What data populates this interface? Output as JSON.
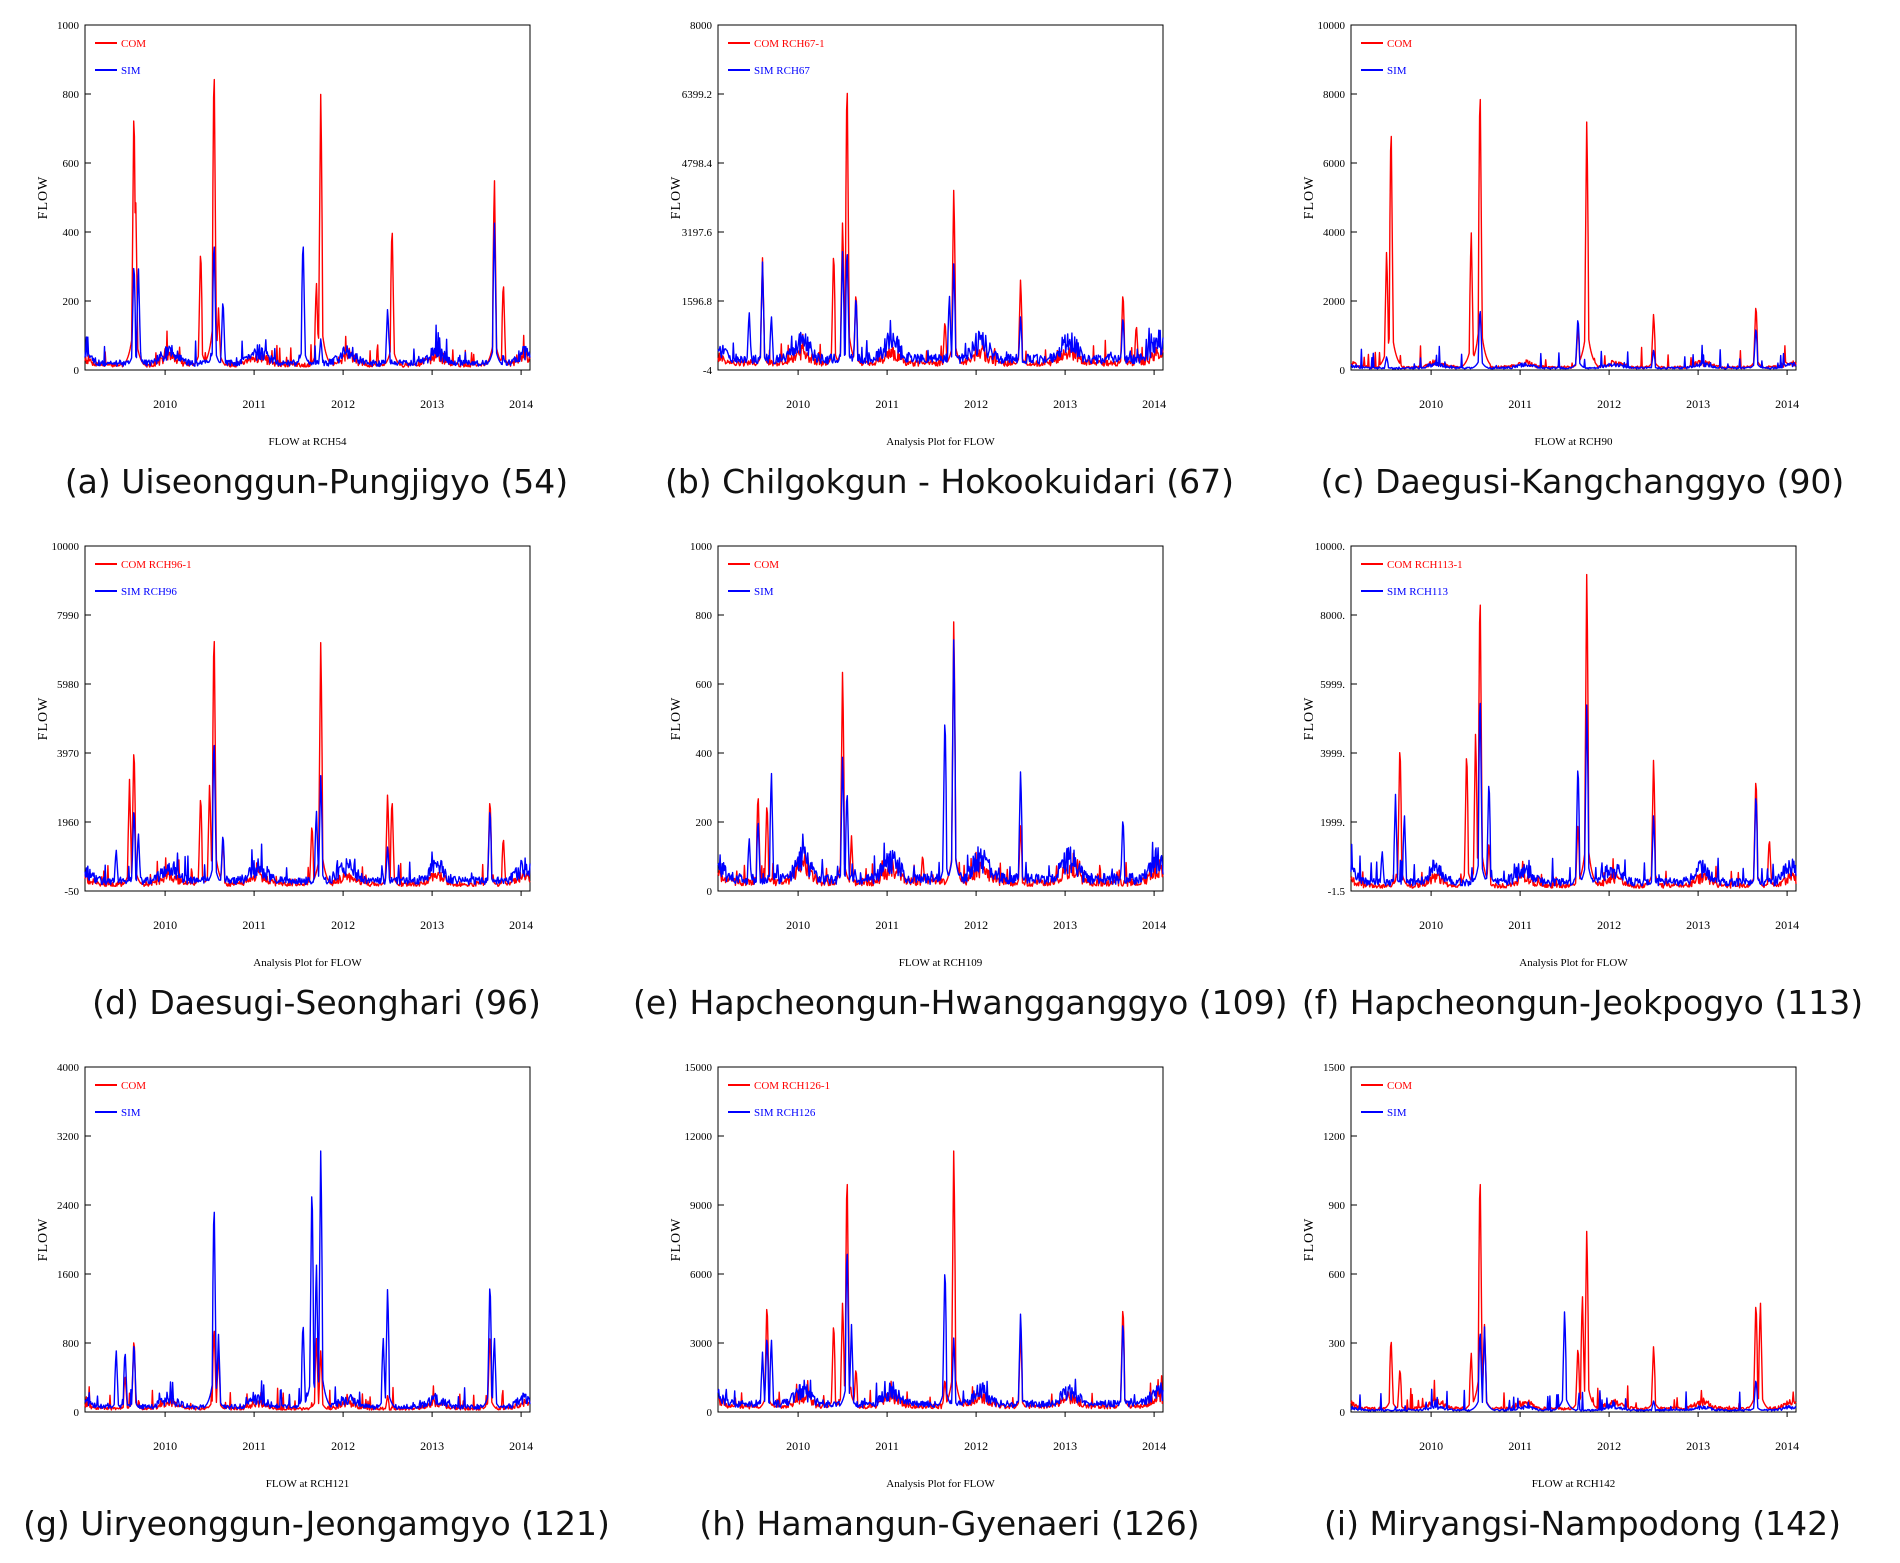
{
  "colors": {
    "com": "#ff0000",
    "sim": "#0000ff",
    "axis": "#000000"
  },
  "chart_data": [
    {
      "type": "line",
      "caption": "(a) Uiseonggun-Pungjigyo (54)",
      "xlabel": "FLOW at RCH54",
      "ylabel": "FLOW",
      "ylim": [
        0,
        1000
      ],
      "yticks": [
        "0",
        "200",
        "400",
        "600",
        "800",
        "1000"
      ],
      "xticks": [
        "2010",
        "2011",
        "2012",
        "2013",
        "2014"
      ],
      "legend_placement": "top-left",
      "series": [
        {
          "name": "COM",
          "color": "#ff0000",
          "baseline": 15,
          "peaks": [
            [
              2010.15,
              810
            ],
            [
              2010.17,
              490
            ],
            [
              2010.9,
              370
            ],
            [
              2011.05,
              945
            ],
            [
              2011.1,
              180
            ],
            [
              2012.25,
              845
            ],
            [
              2012.2,
              265
            ],
            [
              2013.05,
              445
            ],
            [
              2014.2,
              580
            ],
            [
              2014.3,
              270
            ]
          ]
        },
        {
          "name": "SIM",
          "color": "#0000ff",
          "baseline": 20,
          "peaks": [
            [
              2010.15,
              330
            ],
            [
              2010.2,
              310
            ],
            [
              2011.05,
              400
            ],
            [
              2011.15,
              215
            ],
            [
              2012.05,
              400
            ],
            [
              2012.25,
              95
            ],
            [
              2013.0,
              185
            ],
            [
              2014.2,
              450
            ]
          ]
        }
      ]
    },
    {
      "type": "line",
      "caption": "(b) Chilgokgun - Hokookuidari (67)",
      "xlabel": "Analysis Plot for FLOW",
      "ylabel": "FLOW",
      "ylim": [
        -4,
        8000
      ],
      "yticks": [
        "-4",
        "1596.8",
        "3197.6",
        "4798.4",
        "6399.2",
        "8000"
      ],
      "xticks": [
        "2010",
        "2011",
        "2012",
        "2013",
        "2014"
      ],
      "legend_placement": "top-left",
      "series": [
        {
          "name": "COM RCH67-1",
          "color": "#ff0000",
          "baseline": 150,
          "peaks": [
            [
              2010.1,
              2600
            ],
            [
              2010.9,
              2900
            ],
            [
              2011.0,
              3600
            ],
            [
              2011.05,
              7200
            ],
            [
              2011.15,
              1900
            ],
            [
              2012.25,
              4400
            ],
            [
              2012.15,
              1200
            ],
            [
              2013.0,
              2200
            ],
            [
              2014.15,
              1900
            ],
            [
              2014.3,
              1100
            ]
          ]
        },
        {
          "name": "SIM RCH67",
          "color": "#0000ff",
          "baseline": 250,
          "peaks": [
            [
              2009.95,
              1400
            ],
            [
              2010.1,
              2500
            ],
            [
              2010.2,
              1300
            ],
            [
              2011.0,
              2900
            ],
            [
              2011.05,
              3000
            ],
            [
              2011.15,
              1800
            ],
            [
              2012.2,
              1800
            ],
            [
              2012.25,
              2600
            ],
            [
              2013.0,
              1300
            ],
            [
              2014.15,
              1300
            ]
          ]
        }
      ]
    },
    {
      "type": "line",
      "caption": "(c) Daegusi-Kangchanggyo (90)",
      "xlabel": "FLOW at RCH90",
      "ylabel": "FLOW",
      "ylim": [
        0,
        10000
      ],
      "yticks": [
        "0",
        "2000",
        "4000",
        "6000",
        "8000",
        "10000"
      ],
      "xticks": [
        "2010",
        "2011",
        "2012",
        "2013",
        "2014"
      ],
      "legend_placement": "top-left",
      "series": [
        {
          "name": "COM",
          "color": "#ff0000",
          "baseline": 80,
          "peaks": [
            [
              2010.0,
              3600
            ],
            [
              2010.05,
              7600
            ],
            [
              2010.95,
              4200
            ],
            [
              2011.05,
              8800
            ],
            [
              2012.25,
              7600
            ],
            [
              2012.15,
              1300
            ],
            [
              2013.0,
              1700
            ],
            [
              2014.15,
              2000
            ]
          ]
        },
        {
          "name": "SIM",
          "color": "#0000ff",
          "baseline": 60,
          "peaks": [
            [
              2011.05,
              1900
            ],
            [
              2012.15,
              1600
            ],
            [
              2014.15,
              1300
            ],
            [
              2010.0,
              400
            ],
            [
              2013.0,
              600
            ]
          ]
        }
      ]
    },
    {
      "type": "line",
      "caption": "(d) Daesugi-Seonghari (96)",
      "xlabel": "Analysis Plot for FLOW",
      "ylabel": "FLOW",
      "ylim": [
        -50,
        10000
      ],
      "yticks": [
        "-50",
        "1960",
        "3970",
        "5980",
        "7990",
        "10000"
      ],
      "xticks": [
        "2010",
        "2011",
        "2012",
        "2013",
        "2014"
      ],
      "legend_placement": "top-left",
      "series": [
        {
          "name": "COM RCH96-1",
          "color": "#ff0000",
          "baseline": 150,
          "peaks": [
            [
              2010.15,
              4400
            ],
            [
              2010.1,
              3200
            ],
            [
              2010.9,
              2900
            ],
            [
              2011.0,
              3200
            ],
            [
              2011.05,
              8100
            ],
            [
              2011.15,
              1500
            ],
            [
              2012.25,
              7600
            ],
            [
              2012.15,
              2000
            ],
            [
              2013.0,
              2900
            ],
            [
              2013.05,
              2800
            ],
            [
              2014.15,
              2800
            ],
            [
              2014.3,
              1600
            ]
          ]
        },
        {
          "name": "SIM RCH96",
          "color": "#0000ff",
          "baseline": 250,
          "peaks": [
            [
              2009.95,
              1200
            ],
            [
              2010.15,
              2500
            ],
            [
              2010.2,
              1700
            ],
            [
              2011.05,
              4700
            ],
            [
              2011.15,
              1700
            ],
            [
              2012.2,
              2400
            ],
            [
              2012.25,
              3500
            ],
            [
              2013.0,
              1300
            ],
            [
              2014.15,
              2500
            ]
          ]
        }
      ]
    },
    {
      "type": "line",
      "caption": "(e) Hapcheongun-Hwangganggyo (109)",
      "xlabel": "FLOW at RCH109",
      "ylabel": "FLOW",
      "ylim": [
        0,
        1000
      ],
      "yticks": [
        "0",
        "200",
        "400",
        "600",
        "800",
        "1000"
      ],
      "xticks": [
        "2010",
        "2011",
        "2012",
        "2013",
        "2014"
      ],
      "legend_placement": "top-left",
      "series": [
        {
          "name": "COM",
          "color": "#ff0000",
          "baseline": 25,
          "peaks": [
            [
              2010.05,
              300
            ],
            [
              2010.15,
              270
            ],
            [
              2011.0,
              670
            ],
            [
              2011.1,
              160
            ],
            [
              2011.9,
              110
            ],
            [
              2012.25,
              825
            ],
            [
              2013.0,
              200
            ]
          ]
        },
        {
          "name": "SIM",
          "color": "#0000ff",
          "baseline": 35,
          "peaks": [
            [
              2009.95,
              160
            ],
            [
              2010.05,
              220
            ],
            [
              2010.2,
              360
            ],
            [
              2011.0,
              410
            ],
            [
              2011.05,
              310
            ],
            [
              2012.15,
              540
            ],
            [
              2012.25,
              770
            ],
            [
              2013.0,
              365
            ],
            [
              2014.15,
              225
            ]
          ]
        }
      ]
    },
    {
      "type": "line",
      "caption": "(f) Hapcheongun-Jeokpogyo (113)",
      "xlabel": "Analysis Plot for FLOW",
      "ylabel": "FLOW",
      "ylim": [
        -1.5,
        10000
      ],
      "yticks": [
        "-1.5",
        "1999.",
        "3999.",
        "5999.",
        "8000.",
        "10000."
      ],
      "xticks": [
        "2010",
        "2011",
        "2012",
        "2013",
        "2014"
      ],
      "legend_placement": "top-left",
      "series": [
        {
          "name": "COM RCH113-1",
          "color": "#ff0000",
          "baseline": 150,
          "peaks": [
            [
              2010.15,
              4500
            ],
            [
              2010.9,
              4300
            ],
            [
              2011.0,
              4800
            ],
            [
              2011.05,
              9300
            ],
            [
              2011.15,
              1500
            ],
            [
              2012.25,
              9700
            ],
            [
              2012.15,
              2100
            ],
            [
              2013.0,
              4000
            ],
            [
              2014.15,
              3500
            ],
            [
              2014.3,
              1600
            ]
          ]
        },
        {
          "name": "SIM RCH113",
          "color": "#0000ff",
          "baseline": 250,
          "peaks": [
            [
              2009.95,
              1200
            ],
            [
              2010.1,
              2800
            ],
            [
              2010.2,
              2300
            ],
            [
              2011.05,
              6100
            ],
            [
              2011.15,
              3400
            ],
            [
              2012.15,
              3900
            ],
            [
              2012.25,
              5700
            ],
            [
              2013.0,
              2300
            ],
            [
              2014.15,
              3000
            ]
          ]
        }
      ]
    },
    {
      "type": "line",
      "caption": "(g) Uiryeonggun-Jeongamgyo (121)",
      "xlabel": "FLOW at RCH121",
      "ylabel": "FLOW",
      "ylim": [
        0,
        4000
      ],
      "yticks": [
        "0",
        "800",
        "1600",
        "2400",
        "3200",
        "4000"
      ],
      "xticks": [
        "2010",
        "2011",
        "2012",
        "2013",
        "2014"
      ],
      "legend_placement": "top-left",
      "series": [
        {
          "name": "COM",
          "color": "#ff0000",
          "baseline": 40,
          "peaks": [
            [
              2010.15,
              900
            ],
            [
              2010.05,
              450
            ],
            [
              2011.05,
              1050
            ],
            [
              2011.1,
              700
            ],
            [
              2012.2,
              900
            ],
            [
              2012.25,
              750
            ],
            [
              2013.0,
              200
            ],
            [
              2014.15,
              950
            ]
          ]
        },
        {
          "name": "SIM",
          "color": "#0000ff",
          "baseline": 60,
          "peaks": [
            [
              2009.95,
              750
            ],
            [
              2010.05,
              750
            ],
            [
              2010.15,
              850
            ],
            [
              2011.05,
              2600
            ],
            [
              2011.1,
              900
            ],
            [
              2012.05,
              1100
            ],
            [
              2012.15,
              2800
            ],
            [
              2012.2,
              1800
            ],
            [
              2012.25,
              3200
            ],
            [
              2013.0,
              1500
            ],
            [
              2012.95,
              900
            ],
            [
              2014.15,
              1600
            ],
            [
              2014.2,
              900
            ]
          ]
        }
      ]
    },
    {
      "type": "line",
      "caption": "(h) Hamangun-Gyenaeri (126)",
      "xlabel": "Analysis Plot for FLOW",
      "ylabel": "FLOW",
      "ylim": [
        0,
        15000
      ],
      "yticks": [
        "0",
        "3000",
        "6000",
        "9000",
        "12000",
        "15000"
      ],
      "xticks": [
        "2010",
        "2011",
        "2012",
        "2013",
        "2014"
      ],
      "legend_placement": "top-left",
      "series": [
        {
          "name": "COM RCH126-1",
          "color": "#ff0000",
          "baseline": 250,
          "peaks": [
            [
              2010.15,
              5000
            ],
            [
              2010.9,
              4100
            ],
            [
              2011.0,
              5000
            ],
            [
              2011.05,
              11100
            ],
            [
              2011.15,
              2000
            ],
            [
              2012.25,
              12000
            ],
            [
              2012.15,
              1500
            ],
            [
              2013.0,
              3600
            ],
            [
              2014.15,
              4900
            ]
          ]
        },
        {
          "name": "SIM RCH126",
          "color": "#0000ff",
          "baseline": 350,
          "peaks": [
            [
              2010.1,
              2600
            ],
            [
              2010.15,
              3500
            ],
            [
              2010.2,
              3300
            ],
            [
              2011.05,
              7700
            ],
            [
              2011.1,
              3800
            ],
            [
              2012.15,
              6700
            ],
            [
              2012.25,
              3400
            ],
            [
              2013.0,
              4500
            ],
            [
              2014.15,
              4200
            ]
          ]
        }
      ]
    },
    {
      "type": "line",
      "caption": "(i) Miryangsi-Nampodong (142)",
      "xlabel": "FLOW at RCH142",
      "ylabel": "FLOW",
      "ylim": [
        0,
        1500
      ],
      "yticks": [
        "0",
        "300",
        "600",
        "900",
        "1200",
        "1500"
      ],
      "xticks": [
        "2010",
        "2011",
        "2012",
        "2013",
        "2014"
      ],
      "legend_placement": "top-left",
      "series": [
        {
          "name": "COM",
          "color": "#ff0000",
          "baseline": 15,
          "peaks": [
            [
              2010.05,
              340
            ],
            [
              2010.15,
              200
            ],
            [
              2010.95,
              270
            ],
            [
              2011.05,
              1110
            ],
            [
              2011.1,
              380
            ],
            [
              2012.15,
              300
            ],
            [
              2012.2,
              530
            ],
            [
              2012.25,
              830
            ],
            [
              2013.0,
              300
            ],
            [
              2014.15,
              510
            ],
            [
              2014.2,
              500
            ]
          ]
        },
        {
          "name": "SIM",
          "color": "#0000ff",
          "baseline": 8,
          "peaks": [
            [
              2011.05,
              380
            ],
            [
              2011.1,
              370
            ],
            [
              2012.0,
              460
            ],
            [
              2013.0,
              50
            ],
            [
              2014.15,
              150
            ]
          ]
        }
      ]
    }
  ]
}
